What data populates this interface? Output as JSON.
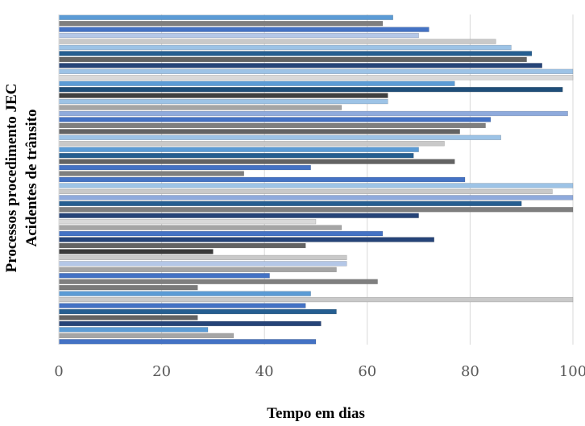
{
  "chart_data": {
    "type": "bar",
    "orientation": "horizontal",
    "xlabel": "Tempo em dias",
    "ylabel_lines": [
      "Processos procedimento JEC",
      "Acidentes de trânsito"
    ],
    "xlim": [
      0,
      100
    ],
    "xticks": [
      0,
      20,
      40,
      60,
      80,
      100
    ],
    "grid": true,
    "legend": "none",
    "values": [
      50,
      34,
      29,
      51,
      27,
      54,
      48,
      100,
      49,
      27,
      62,
      41,
      54,
      56,
      56,
      30,
      48,
      73,
      63,
      55,
      50,
      70,
      100,
      90,
      100,
      96,
      100,
      79,
      36,
      49,
      77,
      69,
      70,
      75,
      86,
      78,
      83,
      84,
      99,
      55,
      64,
      64,
      98,
      77,
      100,
      100,
      94,
      91,
      92,
      88,
      85,
      70,
      72,
      63,
      65
    ],
    "colors": [
      "#4472c4",
      "#a5a5a5",
      "#5b9bd5",
      "#264478",
      "#636363",
      "#255e91",
      "#4472c4",
      "#c9c9c9",
      "#5b9bd5",
      "#7a7a7a",
      "#7f7f7f",
      "#4472c4",
      "#a5a5a5",
      "#b4c7e7",
      "#c9c9c9",
      "#3a3a3a",
      "#636363",
      "#264478",
      "#4472c4",
      "#a5a5a5",
      "#d9d9d9",
      "#264478",
      "#7f7f7f",
      "#255e91",
      "#8faadc",
      "#c9c9c9",
      "#9dc3e6",
      "#4472c4",
      "#7f7f7f",
      "#4472c4",
      "#636363",
      "#255e91",
      "#5b9bd5",
      "#c9c9c9",
      "#9dc3e6",
      "#636363",
      "#7f7f7f",
      "#4472c4",
      "#8faadc",
      "#a5a5a5",
      "#9dc3e6",
      "#404040",
      "#1f4e79",
      "#5b9bd5",
      "#d9d9d9",
      "#9dc3e6",
      "#264478",
      "#636363",
      "#255e91",
      "#9dc3e6",
      "#c9c9c9",
      "#b4c7e7",
      "#4472c4",
      "#7f7f7f",
      "#5b9bd5"
    ]
  }
}
